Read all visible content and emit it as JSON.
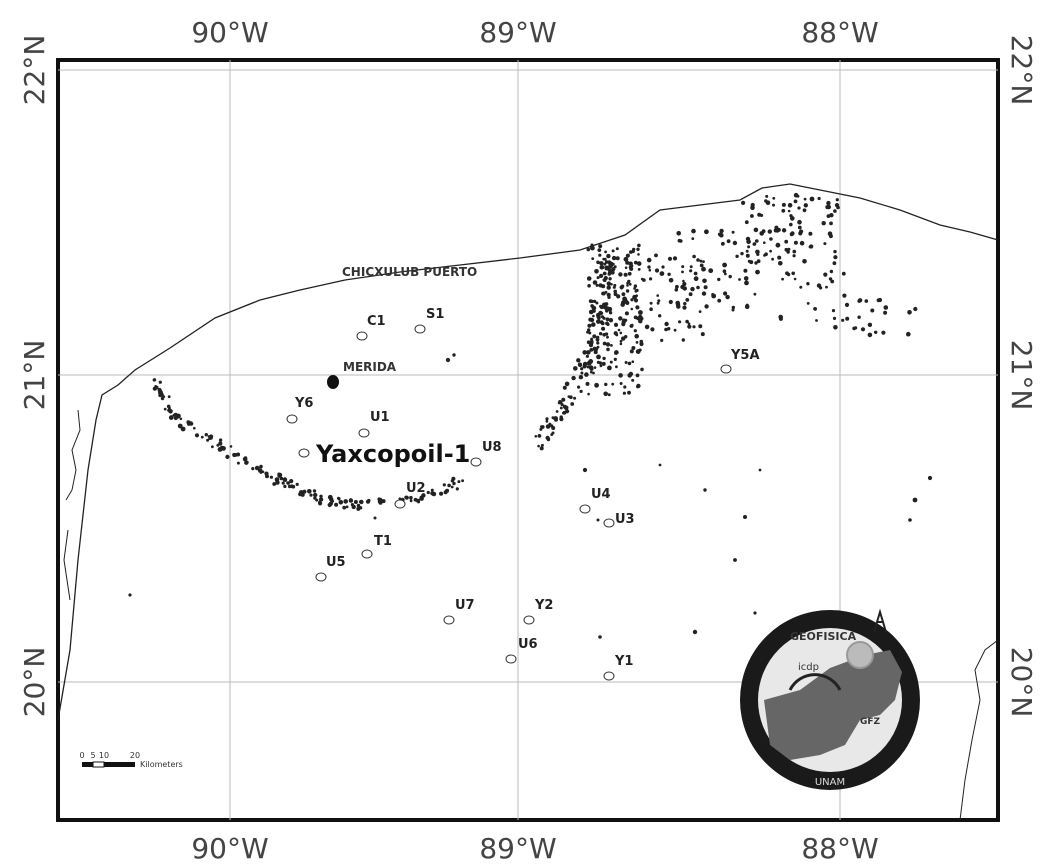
{
  "axes": {
    "top_labels": [
      "90°W",
      "89°W",
      "88°W"
    ],
    "bottom_labels": [
      "90°W",
      "89°W",
      "88°W"
    ],
    "left_labels": [
      "22°N",
      "21°N",
      "20°N"
    ],
    "right_labels": [
      "22°N",
      "21°N",
      "20°N"
    ]
  },
  "towns": [
    {
      "name": "CHICXULUB PUERTO"
    },
    {
      "name": "MERIDA"
    }
  ],
  "highlight_site": {
    "name": "Yaxcopoil-1"
  },
  "sites": [
    {
      "name": "C1"
    },
    {
      "name": "S1"
    },
    {
      "name": "Y6"
    },
    {
      "name": "U1"
    },
    {
      "name": "U8"
    },
    {
      "name": "U2"
    },
    {
      "name": "T1"
    },
    {
      "name": "U5"
    },
    {
      "name": "U4"
    },
    {
      "name": "U3"
    },
    {
      "name": "Y5A"
    },
    {
      "name": "U7"
    },
    {
      "name": "Y2"
    },
    {
      "name": "U6"
    },
    {
      "name": "Y1"
    }
  ],
  "scale_bar": {
    "ticks": [
      "0",
      "5",
      "10",
      "20"
    ],
    "unit": "Kilometers"
  },
  "logo": {
    "brand": "GEOFISICA",
    "program": "icdp",
    "partner": "GFZ",
    "footer": "UNAM"
  },
  "colors": {
    "land_outline": "#222222",
    "grid": "#bbbbbb",
    "cenote": "#222222",
    "frame": "#111111"
  }
}
